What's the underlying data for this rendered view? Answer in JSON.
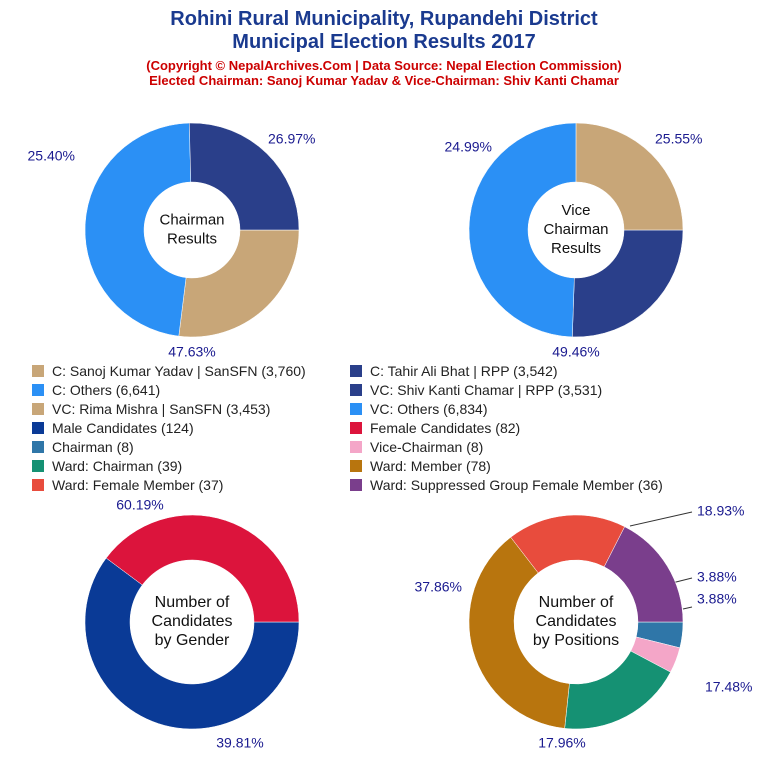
{
  "header": {
    "title_line1": "Rohini Rural Municipality, Rupandehi District",
    "title_line2": "Municipal Election Results 2017",
    "copyright": "(Copyright © NepalArchives.Com | Data Source: Nepal Election Commission)",
    "elected": "Elected Chairman: Sanoj Kumar Yadav & Vice-Chairman: Shiv Kanti Chamar"
  },
  "legend": [
    {
      "label": "C: Sanoj Kumar Yadav | SanSFN (3,760)",
      "color": "#c8a678"
    },
    {
      "label": "C: Tahir Ali Bhat | RPP (3,542)",
      "color": "#2a3f8a"
    },
    {
      "label": "C: Others (6,641)",
      "color": "#2b90f5"
    },
    {
      "label": "VC: Shiv Kanti Chamar | RPP (3,531)",
      "color": "#2a3f8a"
    },
    {
      "label": "VC: Rima Mishra | SanSFN (3,453)",
      "color": "#c8a678"
    },
    {
      "label": "VC: Others (6,834)",
      "color": "#2b90f5"
    },
    {
      "label": "Male Candidates (124)",
      "color": "#0a3a96"
    },
    {
      "label": "Female Candidates (82)",
      "color": "#dc143c"
    },
    {
      "label": "Chairman (8)",
      "color": "#2f76a8"
    },
    {
      "label": "Vice-Chairman (8)",
      "color": "#f4a6c8"
    },
    {
      "label": "Ward: Chairman (39)",
      "color": "#159173"
    },
    {
      "label": "Ward: Member (78)",
      "color": "#b8750e"
    },
    {
      "label": "Ward: Female Member (37)",
      "color": "#e84c3d"
    },
    {
      "label": "Ward: Suppressed Group Female Member (36)",
      "color": "#7a3e8c"
    }
  ],
  "chart_data": [
    {
      "type": "pie",
      "center_label": [
        "Chairman",
        "Results"
      ],
      "slices": [
        {
          "name": "C: Sanoj Kumar Yadav | SanSFN",
          "value": 26.97,
          "color": "#c8a678",
          "label": "26.97%"
        },
        {
          "name": "C: Others",
          "value": 47.63,
          "color": "#2b90f5",
          "label": "47.63%"
        },
        {
          "name": "C: Tahir Ali Bhat | RPP",
          "value": 25.4,
          "color": "#2a3f8a",
          "label": "25.40%"
        }
      ]
    },
    {
      "type": "pie",
      "center_label": [
        "Vice",
        "Chairman",
        "Results"
      ],
      "slices": [
        {
          "name": "VC: Shiv Kanti Chamar | RPP",
          "value": 25.55,
          "color": "#2a3f8a",
          "label": "25.55%"
        },
        {
          "name": "VC: Others",
          "value": 49.46,
          "color": "#2b90f5",
          "label": "49.46%"
        },
        {
          "name": "VC: Rima Mishra | SanSFN",
          "value": 24.99,
          "color": "#c8a678",
          "label": "24.99%"
        }
      ]
    },
    {
      "type": "pie",
      "center_label": [
        "Number of",
        "Candidates",
        "by Gender"
      ],
      "slices": [
        {
          "name": "Male Candidates",
          "value": 60.19,
          "color": "#0a3a96",
          "label": "60.19%"
        },
        {
          "name": "Female Candidates",
          "value": 39.81,
          "color": "#dc143c",
          "label": "39.81%"
        }
      ]
    },
    {
      "type": "pie",
      "center_label": [
        "Number of",
        "Candidates",
        "by Positions"
      ],
      "slices": [
        {
          "name": "Chairman",
          "value": 3.88,
          "color": "#2f76a8",
          "label": "3.88%"
        },
        {
          "name": "Vice-Chairman",
          "value": 3.88,
          "color": "#f4a6c8",
          "label": "3.88%"
        },
        {
          "name": "Ward: Chairman",
          "value": 18.93,
          "color": "#159173",
          "label": "18.93%"
        },
        {
          "name": "Ward: Member",
          "value": 37.86,
          "color": "#b8750e",
          "label": "37.86%"
        },
        {
          "name": "Ward: Female Member",
          "value": 17.96,
          "color": "#e84c3d",
          "label": "17.96%"
        },
        {
          "name": "Ward: Suppressed Group Female Member",
          "value": 17.48,
          "color": "#7a3e8c",
          "label": "17.48%"
        }
      ]
    }
  ]
}
